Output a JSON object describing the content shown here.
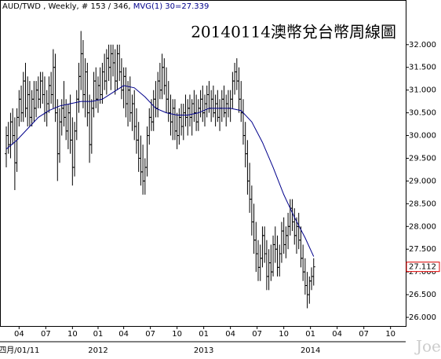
{
  "chart_data": {
    "type": "ohlc",
    "title": "20140114澳幣兌台幣周線圖",
    "header": "AUD/TWD , Weekly, # 153 / 346, ",
    "ma_label": "MVG(1) 30=27.339",
    "watermark": "Joe",
    "color": "#000000",
    "ma_color": "#00008b",
    "ylim": [
      25.81,
      32.93
    ],
    "yticks": [
      {
        "value": 26,
        "label": "26.000"
      },
      {
        "value": 26.5,
        "label": "26.500"
      },
      {
        "value": 27,
        "label": "27.000"
      },
      {
        "value": 27.5,
        "label": "27.500"
      },
      {
        "value": 28,
        "label": "28.000"
      },
      {
        "value": 28.5,
        "label": "28.500"
      },
      {
        "value": 29,
        "label": "29.000"
      },
      {
        "value": 29.5,
        "label": "29.500"
      },
      {
        "value": 30,
        "label": "30.000"
      },
      {
        "value": 30.5,
        "label": "30.500"
      },
      {
        "value": 31,
        "label": "31.000"
      },
      {
        "value": 31.5,
        "label": "31.500"
      },
      {
        "value": 32,
        "label": "32.000"
      }
    ],
    "last_price": {
      "value": 27.112,
      "label": "27.112"
    },
    "xlim": [
      -2.94,
      187.1
    ],
    "xticks": [
      {
        "value": 6,
        "label": "04"
      },
      {
        "value": 18.5,
        "label": "07"
      },
      {
        "value": 31,
        "label": "10"
      },
      {
        "value": 43,
        "label": "01"
      },
      {
        "value": 55,
        "label": "04"
      },
      {
        "value": 67.5,
        "label": "07"
      },
      {
        "value": 80,
        "label": "10"
      },
      {
        "value": 92.5,
        "label": "01"
      },
      {
        "value": 105,
        "label": "04"
      },
      {
        "value": 117.5,
        "label": "07"
      },
      {
        "value": 130,
        "label": "10"
      },
      {
        "value": 142.5,
        "label": "01"
      },
      {
        "value": 155,
        "label": "04"
      },
      {
        "value": 167.5,
        "label": "07"
      },
      {
        "value": 180,
        "label": "10"
      }
    ],
    "year_labels": [
      {
        "value": 6,
        "label": "四月/01/11"
      },
      {
        "value": 43,
        "label": "2012"
      },
      {
        "value": 92.5,
        "label": "2013"
      },
      {
        "value": 142.5,
        "label": "2014"
      }
    ],
    "ohlc": [
      [
        29.6,
        30.2,
        29.3,
        30.0
      ],
      [
        30.0,
        30.3,
        29.6,
        29.8
      ],
      [
        29.8,
        30.5,
        29.5,
        30.3
      ],
      [
        30.3,
        30.6,
        29.8,
        30.0
      ],
      [
        30.0,
        30.4,
        28.8,
        29.4
      ],
      [
        29.4,
        30.6,
        29.2,
        30.4
      ],
      [
        30.4,
        31.0,
        30.2,
        30.8
      ],
      [
        30.8,
        31.1,
        30.3,
        30.5
      ],
      [
        30.5,
        31.4,
        30.3,
        31.2
      ],
      [
        31.2,
        31.6,
        30.4,
        30.6
      ],
      [
        30.6,
        31.3,
        30.2,
        30.9
      ],
      [
        30.9,
        31.2,
        30.2,
        30.4
      ],
      [
        30.4,
        31.0,
        30.2,
        30.8
      ],
      [
        30.8,
        31.2,
        30.3,
        30.6
      ],
      [
        30.6,
        31.2,
        30.4,
        31.0
      ],
      [
        31.0,
        31.3,
        30.6,
        30.8
      ],
      [
        30.8,
        31.4,
        30.6,
        31.2
      ],
      [
        31.2,
        31.4,
        30.7,
        30.9
      ],
      [
        30.9,
        31.3,
        30.3,
        30.5
      ],
      [
        30.5,
        31.0,
        30.2,
        30.7
      ],
      [
        30.7,
        31.3,
        30.5,
        31.1
      ],
      [
        31.1,
        31.4,
        30.7,
        30.9
      ],
      [
        30.9,
        31.9,
        30.6,
        31.5
      ],
      [
        31.5,
        31.8,
        30.3,
        30.5
      ],
      [
        30.5,
        30.8,
        29.0,
        29.6
      ],
      [
        29.6,
        30.6,
        29.4,
        30.3
      ],
      [
        30.3,
        30.8,
        30.0,
        30.6
      ],
      [
        30.6,
        31.2,
        30.2,
        30.4
      ],
      [
        30.4,
        30.8,
        29.9,
        30.1
      ],
      [
        30.1,
        30.7,
        29.7,
        30.5
      ],
      [
        30.5,
        30.9,
        29.6,
        29.9
      ],
      [
        29.9,
        30.4,
        28.9,
        29.3
      ],
      [
        29.3,
        30.3,
        29.1,
        30.1
      ],
      [
        30.1,
        31.0,
        29.9,
        30.8
      ],
      [
        30.8,
        31.6,
        30.5,
        31.3
      ],
      [
        31.3,
        32.3,
        31.0,
        31.8
      ],
      [
        31.8,
        32.1,
        30.6,
        30.9
      ],
      [
        30.9,
        31.7,
        30.4,
        31.4
      ],
      [
        31.4,
        31.6,
        30.2,
        30.5
      ],
      [
        30.5,
        30.9,
        29.4,
        29.8
      ],
      [
        29.8,
        30.8,
        29.6,
        30.6
      ],
      [
        30.6,
        31.4,
        30.4,
        31.2
      ],
      [
        31.2,
        31.5,
        30.6,
        30.8
      ],
      [
        30.8,
        31.3,
        30.5,
        31.1
      ],
      [
        31.1,
        31.5,
        30.7,
        30.9
      ],
      [
        30.9,
        31.6,
        30.7,
        31.4
      ],
      [
        31.4,
        31.8,
        31.0,
        31.2
      ],
      [
        31.2,
        31.9,
        30.9,
        31.7
      ],
      [
        31.7,
        32.0,
        31.2,
        31.5
      ],
      [
        31.5,
        32.0,
        31.0,
        31.8
      ],
      [
        31.8,
        32.0,
        31.3,
        31.6
      ],
      [
        31.6,
        31.9,
        30.9,
        31.2
      ],
      [
        31.2,
        32.0,
        31.0,
        31.8
      ],
      [
        31.8,
        32.0,
        31.2,
        31.4
      ],
      [
        31.4,
        31.7,
        30.8,
        31.0
      ],
      [
        31.0,
        31.5,
        30.6,
        31.3
      ],
      [
        31.3,
        31.5,
        30.4,
        30.7
      ],
      [
        30.7,
        31.2,
        30.2,
        31.0
      ],
      [
        31.0,
        31.3,
        30.3,
        30.5
      ],
      [
        30.5,
        30.9,
        30.1,
        30.7
      ],
      [
        30.7,
        31.0,
        29.9,
        30.2
      ],
      [
        30.2,
        30.6,
        29.6,
        29.9
      ],
      [
        29.9,
        30.3,
        29.2,
        29.5
      ],
      [
        29.5,
        30.0,
        28.9,
        29.2
      ],
      [
        29.2,
        29.8,
        28.7,
        29.0
      ],
      [
        29.0,
        29.5,
        28.7,
        29.3
      ],
      [
        29.3,
        30.2,
        29.1,
        30.0
      ],
      [
        30.0,
        30.6,
        29.8,
        30.4
      ],
      [
        30.4,
        30.8,
        30.1,
        30.3
      ],
      [
        30.3,
        31.0,
        30.1,
        30.8
      ],
      [
        30.8,
        31.2,
        30.4,
        30.6
      ],
      [
        30.6,
        31.4,
        30.4,
        31.2
      ],
      [
        31.2,
        31.6,
        30.8,
        31.0
      ],
      [
        31.0,
        31.8,
        30.8,
        31.5
      ],
      [
        31.5,
        31.7,
        30.9,
        31.1
      ],
      [
        31.1,
        31.5,
        30.5,
        30.8
      ],
      [
        30.8,
        31.2,
        30.3,
        30.5
      ],
      [
        30.5,
        30.9,
        30.0,
        30.3
      ],
      [
        30.3,
        30.8,
        29.9,
        30.6
      ],
      [
        30.6,
        30.8,
        29.9,
        30.1
      ],
      [
        30.1,
        30.5,
        29.7,
        30.0
      ],
      [
        30.0,
        30.6,
        29.8,
        30.4
      ],
      [
        30.4,
        30.7,
        30.0,
        30.2
      ],
      [
        30.2,
        30.7,
        29.9,
        30.5
      ],
      [
        30.5,
        30.9,
        30.2,
        30.4
      ],
      [
        30.4,
        30.8,
        30.0,
        30.6
      ],
      [
        30.6,
        30.9,
        30.2,
        30.4
      ],
      [
        30.4,
        30.8,
        30.0,
        30.7
      ],
      [
        30.7,
        31.0,
        30.3,
        30.5
      ],
      [
        30.5,
        30.9,
        30.1,
        30.3
      ],
      [
        30.3,
        30.8,
        30.1,
        30.6
      ],
      [
        30.6,
        31.0,
        30.4,
        30.8
      ],
      [
        30.8,
        31.1,
        30.3,
        30.5
      ],
      [
        30.5,
        30.9,
        30.2,
        30.7
      ],
      [
        30.7,
        31.1,
        30.4,
        30.9
      ],
      [
        30.9,
        31.2,
        30.5,
        30.6
      ],
      [
        30.6,
        31.0,
        30.3,
        30.8
      ],
      [
        30.8,
        31.1,
        30.4,
        30.5
      ],
      [
        30.5,
        30.9,
        30.2,
        30.7
      ],
      [
        30.7,
        31.0,
        30.3,
        30.4
      ],
      [
        30.4,
        30.8,
        30.1,
        30.6
      ],
      [
        30.6,
        31.0,
        30.3,
        30.8
      ],
      [
        30.8,
        31.1,
        30.4,
        30.5
      ],
      [
        30.5,
        30.9,
        30.2,
        30.7
      ],
      [
        30.7,
        31.0,
        30.4,
        30.6
      ],
      [
        30.6,
        31.0,
        30.3,
        30.8
      ],
      [
        30.8,
        31.4,
        30.6,
        31.2
      ],
      [
        31.2,
        31.6,
        30.9,
        31.4
      ],
      [
        31.4,
        31.7,
        31.0,
        31.2
      ],
      [
        31.2,
        31.5,
        30.5,
        30.8
      ],
      [
        30.8,
        31.2,
        30.3,
        30.5
      ],
      [
        30.5,
        30.8,
        29.8,
        30.0
      ],
      [
        30.0,
        30.3,
        29.3,
        29.6
      ],
      [
        29.6,
        29.9,
        28.7,
        29.0
      ],
      [
        29.0,
        29.4,
        28.3,
        28.6
      ],
      [
        28.6,
        28.9,
        27.8,
        28.1
      ],
      [
        28.1,
        28.5,
        27.4,
        27.7
      ],
      [
        27.7,
        28.1,
        27.0,
        27.4
      ],
      [
        27.4,
        27.7,
        26.8,
        27.1
      ],
      [
        27.1,
        27.6,
        26.8,
        27.3
      ],
      [
        27.3,
        28.0,
        27.1,
        27.8
      ],
      [
        27.8,
        28.0,
        27.2,
        27.4
      ],
      [
        27.4,
        27.7,
        26.6,
        26.9
      ],
      [
        26.9,
        27.5,
        26.6,
        27.2
      ],
      [
        27.2,
        27.6,
        26.8,
        27.0
      ],
      [
        27.0,
        27.8,
        26.9,
        27.6
      ],
      [
        27.6,
        28.0,
        27.2,
        27.5
      ],
      [
        27.5,
        27.8,
        26.9,
        27.1
      ],
      [
        27.1,
        27.6,
        26.9,
        27.4
      ],
      [
        27.4,
        28.1,
        27.2,
        27.9
      ],
      [
        27.9,
        28.2,
        27.4,
        27.6
      ],
      [
        27.6,
        28.0,
        27.3,
        27.8
      ],
      [
        27.8,
        28.3,
        27.5,
        28.0
      ],
      [
        28.0,
        28.6,
        27.8,
        28.4
      ],
      [
        28.4,
        28.6,
        27.9,
        28.1
      ],
      [
        28.1,
        28.4,
        27.6,
        27.8
      ],
      [
        27.8,
        28.2,
        27.4,
        28.0
      ],
      [
        28.0,
        28.3,
        27.5,
        27.7
      ],
      [
        27.7,
        28.0,
        27.1,
        27.3
      ],
      [
        27.3,
        27.6,
        26.8,
        27.0
      ],
      [
        27.0,
        27.3,
        26.5,
        26.7
      ],
      [
        26.7,
        27.0,
        26.2,
        26.5
      ],
      [
        26.5,
        26.9,
        26.3,
        26.8
      ],
      [
        26.8,
        27.1,
        26.6,
        26.9
      ],
      [
        26.9,
        27.3,
        26.7,
        27.112
      ]
    ],
    "ma": {
      "x": [
        0,
        5,
        10,
        15,
        20,
        25,
        30,
        35,
        40,
        45,
        50,
        55,
        60,
        65,
        70,
        75,
        80,
        85,
        90,
        95,
        100,
        105,
        110,
        115,
        120,
        125,
        130,
        135,
        140,
        144
      ],
      "values": [
        29.7,
        29.9,
        30.15,
        30.4,
        30.55,
        30.65,
        30.7,
        30.75,
        30.75,
        30.8,
        30.95,
        31.1,
        31.05,
        30.85,
        30.6,
        30.5,
        30.45,
        30.45,
        30.5,
        30.6,
        30.6,
        30.6,
        30.55,
        30.3,
        29.85,
        29.3,
        28.7,
        28.2,
        27.75,
        27.339
      ]
    }
  }
}
